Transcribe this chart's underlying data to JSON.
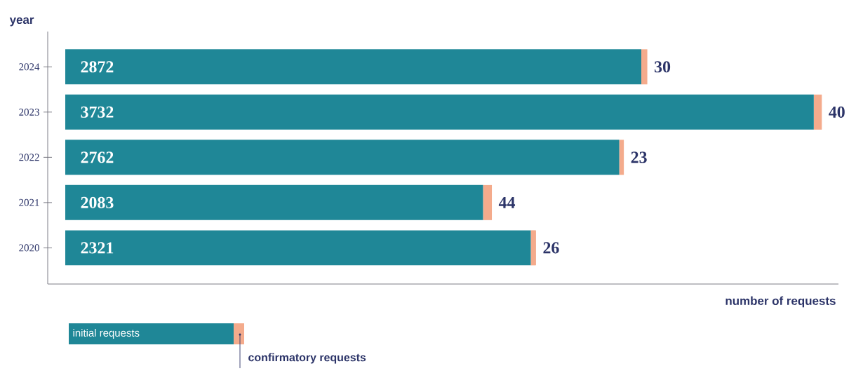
{
  "chart_data": {
    "type": "bar",
    "orientation": "horizontal",
    "stacked": true,
    "categories": [
      "2024",
      "2023",
      "2022",
      "2021",
      "2020"
    ],
    "series": [
      {
        "name": "initial requests",
        "color": "#1f8797",
        "values": [
          2872,
          3732,
          2762,
          2083,
          2321
        ]
      },
      {
        "name": "confirmatory requests",
        "color": "#f4ab8c",
        "values": [
          30,
          40,
          23,
          44,
          26
        ]
      }
    ],
    "xlabel": "number of requests",
    "ylabel": "year",
    "data_labels": true,
    "legend": "bottom left",
    "tick_labels": "y",
    "grid": false
  }
}
